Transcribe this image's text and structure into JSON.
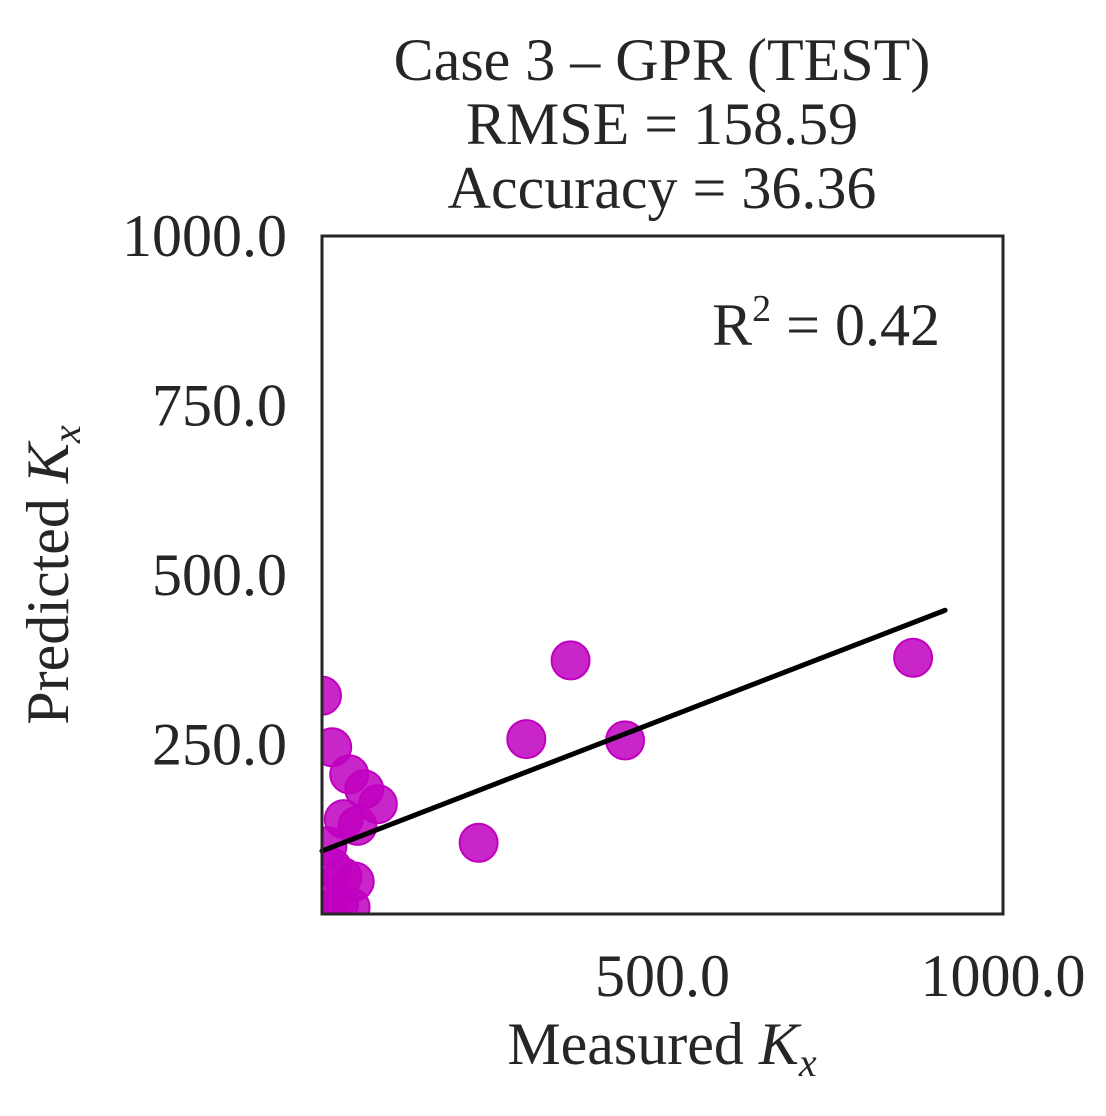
{
  "chart_data": {
    "type": "scatter",
    "title_lines": [
      "Case 3 – GPR (TEST)",
      "RMSE = 158.59",
      "Accuracy = 36.36"
    ],
    "xlabel": {
      "prefix": "Measured ",
      "symbol": "K",
      "subscript": "x"
    },
    "ylabel": {
      "prefix": "Predicted ",
      "symbol": "K",
      "subscript": "x"
    },
    "xlim": [
      0,
      1000
    ],
    "ylim": [
      0,
      1000
    ],
    "x_ticks": [
      500,
      1000
    ],
    "x_tick_labels": [
      "500.0",
      "1000.0"
    ],
    "y_ticks": [
      250,
      500,
      750,
      1000
    ],
    "y_tick_labels": [
      "250.0",
      "500.0",
      "750.0",
      "1000.0"
    ],
    "grid": false,
    "marker_color": "#c000c0",
    "line_color": "#000000",
    "annotation": {
      "base": "R",
      "superscript": "2",
      "text": " = 0.42",
      "position": "top-right"
    },
    "points": [
      {
        "x": 0,
        "y": 322
      },
      {
        "x": 15,
        "y": 246
      },
      {
        "x": 40,
        "y": 206
      },
      {
        "x": 62,
        "y": 184
      },
      {
        "x": 82,
        "y": 162
      },
      {
        "x": 32,
        "y": 140
      },
      {
        "x": 52,
        "y": 130
      },
      {
        "x": 8,
        "y": 100
      },
      {
        "x": 15,
        "y": 68
      },
      {
        "x": 30,
        "y": 55
      },
      {
        "x": 48,
        "y": 48
      },
      {
        "x": 5,
        "y": 30
      },
      {
        "x": 25,
        "y": 15
      },
      {
        "x": 42,
        "y": 10
      },
      {
        "x": 10,
        "y": 5
      },
      {
        "x": 230,
        "y": 105
      },
      {
        "x": 300,
        "y": 258
      },
      {
        "x": 365,
        "y": 374
      },
      {
        "x": 445,
        "y": 256
      },
      {
        "x": 868,
        "y": 378
      }
    ],
    "fit_line": {
      "x": [
        0,
        915
      ],
      "y": [
        93,
        448
      ]
    }
  }
}
